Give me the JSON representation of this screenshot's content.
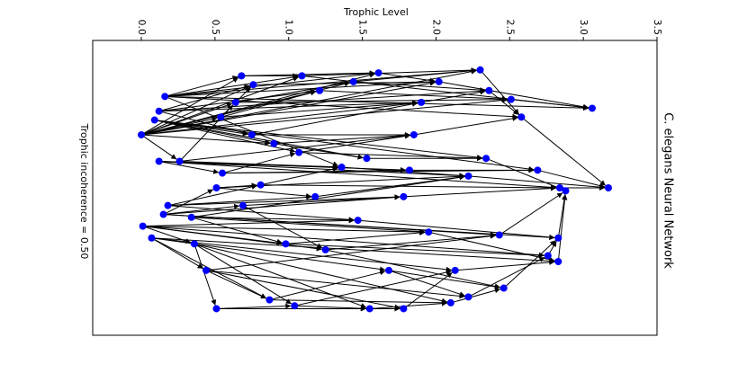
{
  "chart_data": {
    "type": "network",
    "title": "C. elegans Neural Network",
    "xlabel": "Trophic Level",
    "annotation": "Trophic incoherence = 0.50",
    "xlim": [
      -0.33,
      3.5
    ],
    "xticks": [
      {
        "value": 0,
        "label": "0.0"
      },
      0.5,
      {
        "value": 1,
        "label": "1.0"
      },
      1.5,
      {
        "value": 2,
        "label": "2.0"
      },
      2.5,
      {
        "value": 3,
        "label": "3.0"
      },
      3.5
    ],
    "ylim": [
      0,
      1
    ],
    "node_color": "#0000ff",
    "edge_color": "#000000",
    "nodes": {
      "x": [
        0.0,
        0.16,
        0.12,
        0.09,
        0.12,
        0.15,
        0.01,
        0.07,
        0.18,
        0.26,
        0.34,
        0.36,
        0.44,
        0.51,
        0.51,
        0.54,
        0.55,
        0.64,
        0.68,
        0.69,
        0.76,
        0.81,
        0.87,
        0.9,
        0.98,
        1.04,
        1.09,
        1.07,
        1.21,
        1.25,
        1.36,
        1.44,
        1.47,
        1.55,
        1.53,
        1.61,
        1.68,
        1.78,
        1.78,
        1.82,
        1.9,
        1.95,
        2.02,
        2.1,
        2.13,
        2.22,
        2.3,
        2.34,
        2.43,
        2.51,
        2.58,
        2.69,
        2.76,
        2.83,
        2.84,
        2.83,
        2.88,
        3.06,
        3.17,
        2.36,
        1.85,
        1.18,
        0.75,
        2.22,
        2.46
      ],
      "y": [
        0.32,
        0.19,
        0.24,
        0.27,
        0.41,
        0.59,
        0.63,
        0.67,
        0.56,
        0.41,
        0.6,
        0.69,
        0.78,
        0.91,
        0.5,
        0.26,
        0.45,
        0.21,
        0.12,
        0.56,
        0.15,
        0.49,
        0.88,
        0.35,
        0.69,
        0.9,
        0.12,
        0.38,
        0.17,
        0.71,
        0.43,
        0.14,
        0.61,
        0.91,
        0.4,
        0.11,
        0.78,
        0.91,
        0.53,
        0.44,
        0.21,
        0.65,
        0.14,
        0.89,
        0.78,
        0.46,
        0.1,
        0.4,
        0.66,
        0.2,
        0.26,
        0.44,
        0.73,
        0.75,
        0.5,
        0.67,
        0.51,
        0.23,
        0.5,
        0.17,
        0.32,
        0.53,
        0.32,
        0.87,
        0.84
      ]
    },
    "edges": [
      [
        0,
        17
      ],
      [
        0,
        18
      ],
      [
        0,
        20
      ],
      [
        0,
        26
      ],
      [
        0,
        28
      ],
      [
        0,
        31
      ],
      [
        0,
        35
      ],
      [
        0,
        40
      ],
      [
        0,
        42
      ],
      [
        0,
        46
      ],
      [
        0,
        49
      ],
      [
        0,
        9
      ],
      [
        0,
        15
      ],
      [
        0,
        23
      ],
      [
        1,
        18
      ],
      [
        1,
        26
      ],
      [
        1,
        35
      ],
      [
        1,
        42
      ],
      [
        1,
        46
      ],
      [
        1,
        50
      ],
      [
        1,
        57
      ],
      [
        2,
        20
      ],
      [
        2,
        28
      ],
      [
        2,
        40
      ],
      [
        2,
        59
      ],
      [
        3,
        23
      ],
      [
        3,
        27
      ],
      [
        3,
        34
      ],
      [
        3,
        47
      ],
      [
        3,
        51
      ],
      [
        4,
        16
      ],
      [
        4,
        30
      ],
      [
        4,
        39
      ],
      [
        4,
        45
      ],
      [
        4,
        54
      ],
      [
        5,
        14
      ],
      [
        5,
        19
      ],
      [
        5,
        38
      ],
      [
        5,
        48
      ],
      [
        5,
        55
      ],
      [
        6,
        11
      ],
      [
        6,
        24
      ],
      [
        6,
        29
      ],
      [
        6,
        41
      ],
      [
        6,
        52
      ],
      [
        7,
        12
      ],
      [
        7,
        22
      ],
      [
        7,
        36
      ],
      [
        7,
        44
      ],
      [
        7,
        53
      ],
      [
        8,
        21
      ],
      [
        8,
        32
      ],
      [
        8,
        38
      ],
      [
        9,
        17
      ],
      [
        9,
        30
      ],
      [
        9,
        60
      ],
      [
        10,
        24
      ],
      [
        10,
        32
      ],
      [
        10,
        41
      ],
      [
        11,
        13
      ],
      [
        11,
        25
      ],
      [
        11,
        33
      ],
      [
        11,
        43
      ],
      [
        12,
        22
      ],
      [
        12,
        37
      ],
      [
        12,
        63
      ],
      [
        13,
        25
      ],
      [
        13,
        33
      ],
      [
        13,
        37
      ],
      [
        14,
        21
      ],
      [
        14,
        61
      ],
      [
        14,
        45
      ],
      [
        15,
        20
      ],
      [
        15,
        28
      ],
      [
        15,
        40
      ],
      [
        16,
        27
      ],
      [
        16,
        39
      ],
      [
        16,
        51
      ],
      [
        17,
        31
      ],
      [
        17,
        49
      ],
      [
        18,
        26
      ],
      [
        18,
        35
      ],
      [
        19,
        29
      ],
      [
        19,
        38
      ],
      [
        20,
        42
      ],
      [
        21,
        30
      ],
      [
        21,
        54
      ],
      [
        22,
        36
      ],
      [
        22,
        43
      ],
      [
        23,
        34
      ],
      [
        23,
        60
      ],
      [
        24,
        41
      ],
      [
        24,
        52
      ],
      [
        25,
        33
      ],
      [
        25,
        44
      ],
      [
        26,
        46
      ],
      [
        27,
        47
      ],
      [
        28,
        49
      ],
      [
        29,
        48
      ],
      [
        29,
        64
      ],
      [
        30,
        45
      ],
      [
        31,
        46
      ],
      [
        32,
        55
      ],
      [
        33,
        43
      ],
      [
        34,
        47
      ],
      [
        35,
        42
      ],
      [
        36,
        63
      ],
      [
        37,
        44
      ],
      [
        38,
        54
      ],
      [
        39,
        51
      ],
      [
        40,
        59
      ],
      [
        41,
        53
      ],
      [
        42,
        57
      ],
      [
        43,
        64
      ],
      [
        44,
        53
      ],
      [
        45,
        58
      ],
      [
        46,
        50
      ],
      [
        47,
        56
      ],
      [
        48,
        56
      ],
      [
        49,
        57
      ],
      [
        50,
        58
      ],
      [
        51,
        58
      ],
      [
        52,
        55
      ],
      [
        53,
        56
      ],
      [
        54,
        58
      ],
      [
        55,
        56
      ],
      [
        59,
        50
      ],
      [
        60,
        50
      ],
      [
        61,
        45
      ],
      [
        62,
        40
      ],
      [
        62,
        60
      ],
      [
        63,
        52
      ],
      [
        64,
        55
      ],
      [
        1,
        30
      ],
      [
        6,
        32
      ],
      [
        12,
        48
      ],
      [
        10,
        45
      ],
      [
        27,
        60
      ],
      [
        31,
        59
      ],
      [
        36,
        64
      ],
      [
        3,
        62
      ],
      [
        2,
        62
      ],
      [
        8,
        61
      ],
      [
        26,
        57
      ]
    ]
  }
}
